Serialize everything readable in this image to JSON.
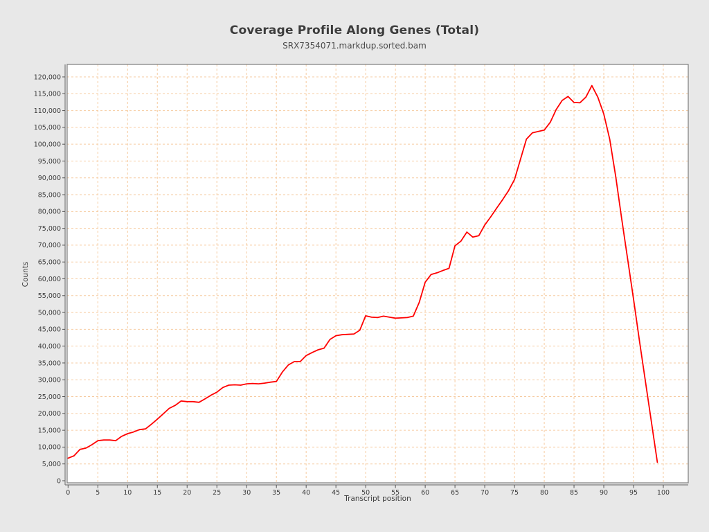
{
  "page": {
    "background_color": "#e8e8e8",
    "plot_background_color": "#ffffff",
    "frame_color": "#7d7d7d",
    "tick_color": "#555555",
    "text_color": "#3c3c3c"
  },
  "chart_data": {
    "type": "line",
    "title": "Coverage Profile Along Genes (Total)",
    "subtitle": "SRX7354071.markdup.sorted.bam",
    "xlabel": "Transcript position",
    "ylabel": "Counts",
    "line_color": "#ff0000",
    "grid_color": "#f6cba0",
    "grid": true,
    "legend_position": "none",
    "xlim": [
      -0.5,
      104.2
    ],
    "ylim": [
      0,
      123700
    ],
    "x_ticks": [
      0,
      5,
      10,
      15,
      20,
      25,
      30,
      35,
      40,
      45,
      50,
      55,
      60,
      65,
      70,
      75,
      80,
      85,
      90,
      95,
      100
    ],
    "y_ticks": [
      0,
      5000,
      10000,
      15000,
      20000,
      25000,
      30000,
      35000,
      40000,
      45000,
      50000,
      55000,
      60000,
      65000,
      70000,
      75000,
      80000,
      85000,
      90000,
      95000,
      100000,
      105000,
      110000,
      115000,
      120000
    ],
    "x": [
      0,
      1,
      2,
      3,
      4,
      5,
      6,
      7,
      8,
      9,
      10,
      11,
      12,
      13,
      14,
      15,
      16,
      17,
      18,
      19,
      20,
      21,
      22,
      23,
      24,
      25,
      26,
      27,
      28,
      29,
      30,
      31,
      32,
      33,
      34,
      35,
      36,
      37,
      38,
      39,
      40,
      41,
      42,
      43,
      44,
      45,
      46,
      47,
      48,
      49,
      50,
      51,
      52,
      53,
      54,
      55,
      56,
      57,
      58,
      59,
      60,
      61,
      62,
      63,
      64,
      65,
      66,
      67,
      68,
      69,
      70,
      71,
      72,
      73,
      74,
      75,
      76,
      77,
      78,
      79,
      80,
      81,
      82,
      83,
      84,
      85,
      86,
      87,
      88,
      89,
      90,
      91,
      92,
      93,
      94,
      95,
      96,
      97,
      98,
      99
    ],
    "y": [
      6700,
      7400,
      9300,
      9700,
      10700,
      11900,
      12100,
      12100,
      11900,
      13200,
      14000,
      14500,
      15200,
      15400,
      16800,
      18300,
      19900,
      21500,
      22400,
      23700,
      23500,
      23500,
      23300,
      24300,
      25400,
      26300,
      27700,
      28400,
      28500,
      28400,
      28800,
      28900,
      28800,
      29000,
      29300,
      29500,
      32300,
      34400,
      35400,
      35400,
      37200,
      38100,
      38900,
      39400,
      42000,
      43100,
      43400,
      43500,
      43600,
      44700,
      49000,
      48600,
      48500,
      48900,
      48600,
      48300,
      48400,
      48500,
      48900,
      53000,
      59000,
      61300,
      61800,
      62500,
      63100,
      69800,
      71200,
      73900,
      72400,
      72800,
      76000,
      78400,
      81000,
      83500,
      86200,
      89500,
      95500,
      101500,
      103400,
      103800,
      104200,
      106500,
      110300,
      113000,
      114200,
      112400,
      112300,
      114000,
      117400,
      114000,
      109000,
      101500,
      90500,
      78000,
      66000,
      54000,
      41500,
      29500,
      17500,
      5500
    ]
  }
}
